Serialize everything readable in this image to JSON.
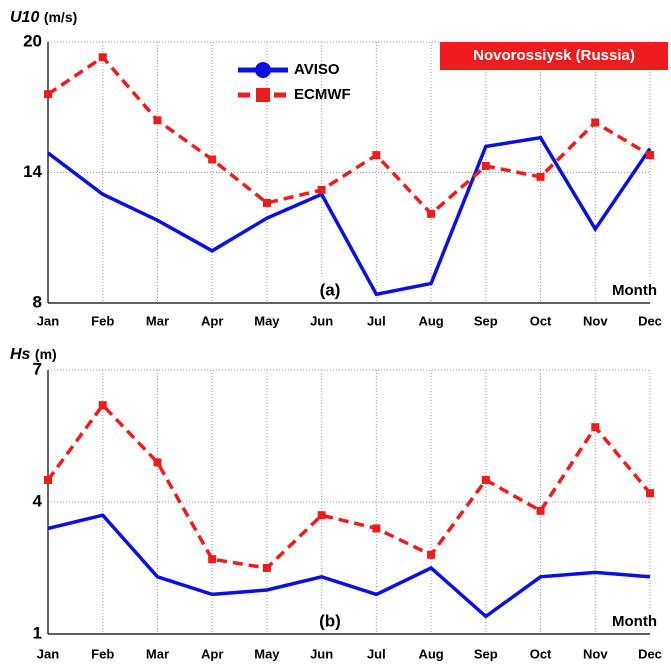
{
  "chart_data": [
    {
      "type": "line",
      "ylabel_symbol": "U10",
      "ylabel_unit": "(m/s)",
      "panel": "(a)",
      "xlabel": "Month",
      "annotation": "Novorossiysk (Russia)",
      "legend": true,
      "grid": true,
      "categories": [
        "Jan",
        "Feb",
        "Mar",
        "Apr",
        "May",
        "Jun",
        "Jul",
        "Aug",
        "Sep",
        "Oct",
        "Nov",
        "Dec"
      ],
      "ylim": [
        8,
        20
      ],
      "yticks": [
        8,
        14,
        20
      ],
      "series": [
        {
          "name": "AVISO",
          "color": "#0a10e0",
          "style": "solid",
          "values": [
            14.9,
            13.0,
            11.8,
            10.4,
            11.9,
            13.0,
            8.4,
            8.9,
            15.2,
            15.6,
            11.4,
            15.1
          ]
        },
        {
          "name": "ECMWF",
          "color": "#ee1c1c",
          "style": "dashed",
          "values": [
            17.6,
            19.3,
            16.4,
            14.6,
            12.6,
            13.2,
            14.8,
            12.1,
            14.3,
            13.8,
            16.3,
            14.8
          ]
        }
      ]
    },
    {
      "type": "line",
      "ylabel_symbol": "Hs",
      "ylabel_unit": "(m)",
      "panel": "(b)",
      "xlabel": "Month",
      "legend": false,
      "grid": true,
      "categories": [
        "Jan",
        "Feb",
        "Mar",
        "Apr",
        "May",
        "Jun",
        "Jul",
        "Aug",
        "Sep",
        "Oct",
        "Nov",
        "Dec"
      ],
      "ylim": [
        1,
        7
      ],
      "yticks": [
        1,
        4,
        7
      ],
      "series": [
        {
          "name": "AVISO",
          "color": "#0a10e0",
          "style": "solid",
          "values": [
            3.4,
            3.7,
            2.3,
            1.9,
            2.0,
            2.3,
            1.9,
            2.5,
            1.4,
            2.3,
            2.4,
            2.3
          ]
        },
        {
          "name": "ECMWF",
          "color": "#ee1c1c",
          "style": "dashed",
          "values": [
            4.5,
            6.2,
            4.9,
            2.7,
            2.5,
            3.7,
            3.4,
            2.8,
            4.5,
            3.8,
            5.7,
            4.2
          ]
        }
      ]
    }
  ]
}
